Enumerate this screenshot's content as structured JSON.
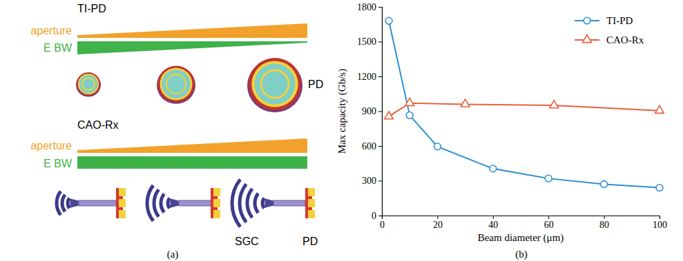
{
  "diagram": {
    "panel_label": "(a)",
    "ti_pd": {
      "title": "TI-PD",
      "aperture": "aperture",
      "ebw": "E BW",
      "pd": "PD"
    },
    "cao_rx": {
      "title": "CAO-Rx",
      "aperture": "aperture",
      "ebw": "E BW",
      "sgc": "SGC",
      "pd": "PD"
    }
  },
  "chart_data": {
    "type": "line",
    "panel_label": "(b)",
    "x_label": "Beam diameter (μm)",
    "y_label": "Max capacity (Gb/s)",
    "xlim": [
      0,
      100
    ],
    "xticks": [
      0,
      20,
      40,
      60,
      80,
      100
    ],
    "ylim": [
      0,
      1800
    ],
    "yticks": [
      0,
      300,
      600,
      900,
      1200,
      1500,
      1800
    ],
    "legend": "upper right",
    "series": [
      {
        "name": "TI-PD",
        "color": "#2b8fd1",
        "marker": "circle",
        "x": [
          2.5,
          10,
          20,
          40,
          60,
          80,
          100
        ],
        "values": [
          1680,
          865,
          595,
          405,
          320,
          270,
          240
        ]
      },
      {
        "name": "CAO-Rx",
        "color": "#e8603c",
        "marker": "triangle",
        "x": [
          2.5,
          10,
          30,
          62,
          100
        ],
        "values": [
          855,
          970,
          960,
          950,
          905
        ]
      }
    ]
  }
}
